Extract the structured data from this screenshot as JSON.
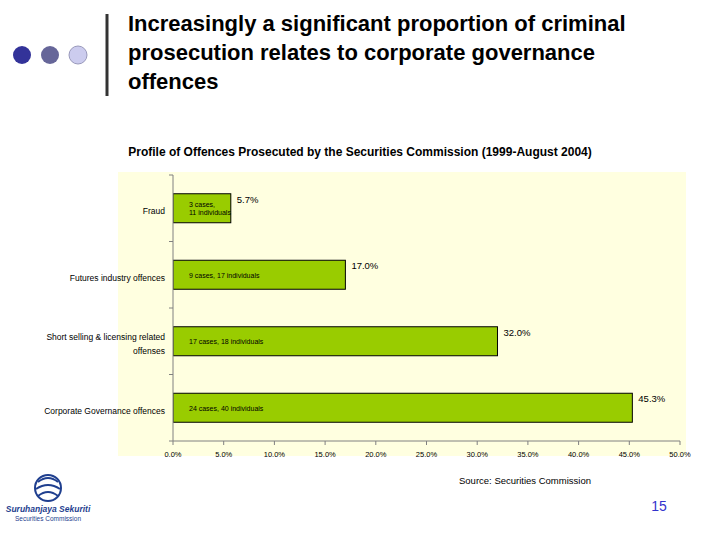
{
  "slide": {
    "title": "Increasingly a significant proportion of criminal prosecution relates to corporate governance offences",
    "source": "Source: Securities Commission",
    "page": 15,
    "logo": [
      "Suruhanjaya Sekuriti",
      "Securities Commission"
    ]
  },
  "chart_data": {
    "type": "bar",
    "orientation": "horizontal",
    "title": "Profile of Offences Prosecuted by the Securities Commission (1999-August 2004)",
    "categories": [
      "Fraud",
      "Futures industry offences",
      "Short selling & licensing related offenses",
      "Corporate Governance offences"
    ],
    "values": [
      5.7,
      17.0,
      32.0,
      45.3
    ],
    "value_labels": [
      "5.7%",
      "17.0%",
      "32.0%",
      "45.3%"
    ],
    "annotations": [
      "3 cases, 11 individuals",
      "9 cases, 17 individuals",
      "17 cases, 18 individuals",
      "24 cases, 40 individuals"
    ],
    "color": "#99cc00",
    "xlim": [
      0,
      50
    ],
    "xticks": [
      {
        "value": 0,
        "label": "0.0%"
      },
      {
        "value": 5,
        "label": "5.0%"
      },
      {
        "value": 10,
        "label": "10.0%"
      },
      {
        "value": 15,
        "label": "15.0%"
      },
      {
        "value": 20,
        "label": "20.0%"
      },
      {
        "value": 25,
        "label": "25.0%"
      },
      {
        "value": 30,
        "label": "30.0%"
      },
      {
        "value": 35,
        "label": "35.0%"
      },
      {
        "value": 40,
        "label": "40.0%"
      },
      {
        "value": 45,
        "label": "45.0%"
      },
      {
        "value": 50,
        "label": "50.0%"
      }
    ],
    "data_labels": true,
    "grid": false
  }
}
